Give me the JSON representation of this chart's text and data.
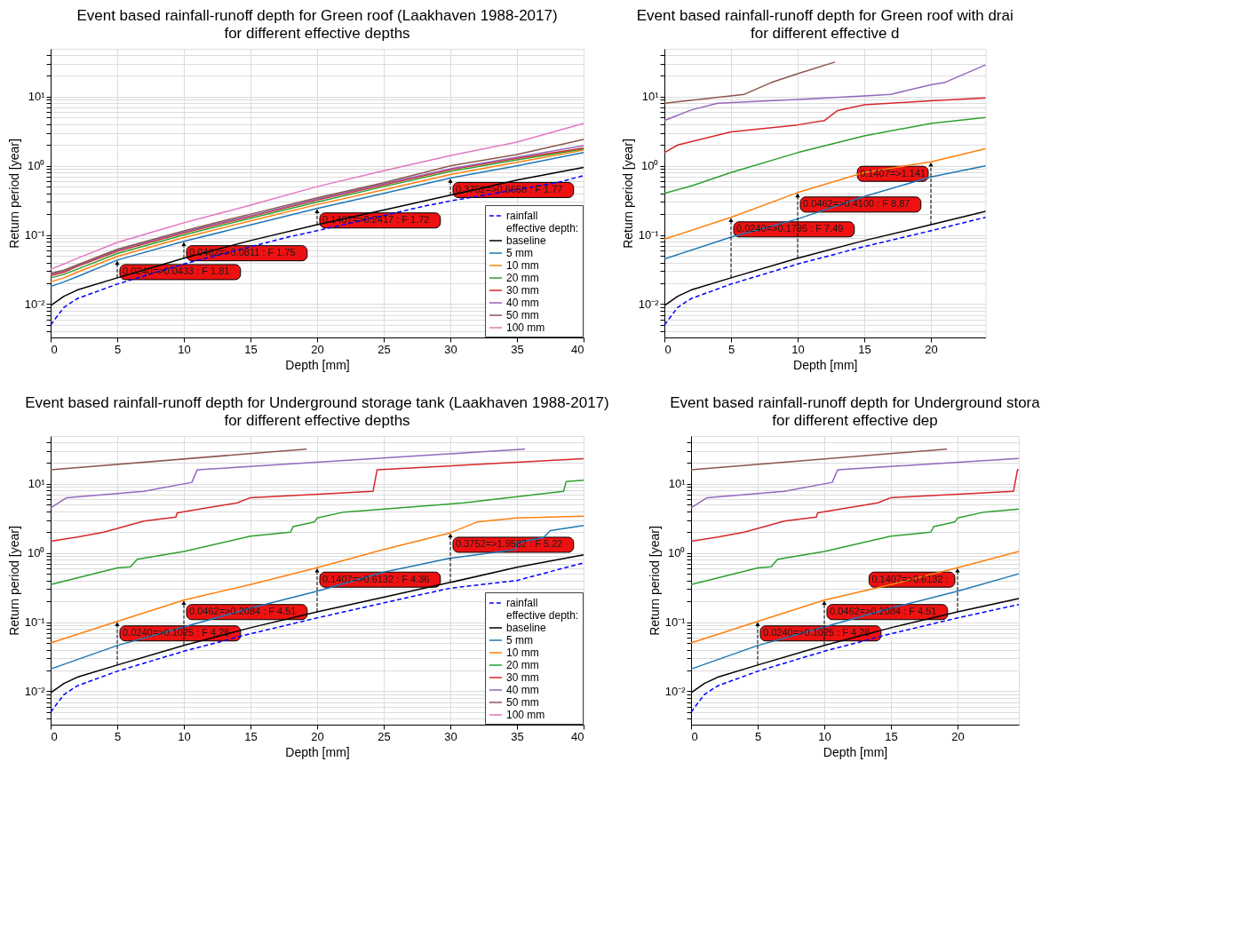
{
  "chart_data": [
    {
      "type": "line",
      "title": "Event based rainfall-runoff depth for Green roof (Laakhaven 1988-2017)",
      "subtitle": "for different effective depths",
      "xlabel": "Depth [mm]",
      "ylabel": "Return period [year]",
      "xlim": [
        0,
        40
      ],
      "xticks": [
        0,
        5,
        10,
        15,
        20,
        25,
        30,
        35,
        40
      ],
      "ylim": [
        0.0033,
        49
      ],
      "log": "y",
      "grid": true,
      "legend": "bottom right",
      "legend_title": "effective depth:",
      "yticks": [
        {
          "value": 0.004,
          "label": null
        },
        {
          "value": 0.005,
          "label": null
        },
        {
          "value": 0.006,
          "label": null
        },
        {
          "value": 0.007,
          "label": null
        },
        {
          "value": 0.008,
          "label": null
        },
        {
          "value": 0.009,
          "label": null
        },
        {
          "value": 0.01,
          "label": "10⁻²"
        },
        {
          "value": 0.02,
          "label": null
        },
        {
          "value": 0.03,
          "label": null
        },
        {
          "value": 0.04,
          "label": null
        },
        {
          "value": 0.05,
          "label": null
        },
        {
          "value": 0.06,
          "label": null
        },
        {
          "value": 0.07,
          "label": null
        },
        {
          "value": 0.08,
          "label": null
        },
        {
          "value": 0.09,
          "label": null
        },
        {
          "value": 0.1,
          "label": "10⁻¹"
        },
        {
          "value": 0.2,
          "label": null
        },
        {
          "value": 0.3,
          "label": null
        },
        {
          "value": 0.4,
          "label": null
        },
        {
          "value": 0.5,
          "label": null
        },
        {
          "value": 0.6,
          "label": null
        },
        {
          "value": 0.7,
          "label": null
        },
        {
          "value": 0.8,
          "label": null
        },
        {
          "value": 0.9,
          "label": null
        },
        {
          "value": 1,
          "label": "10⁰"
        },
        {
          "value": 2,
          "label": null
        },
        {
          "value": 3,
          "label": null
        },
        {
          "value": 4,
          "label": null
        },
        {
          "value": 5,
          "label": null
        },
        {
          "value": 6,
          "label": null
        },
        {
          "value": 7,
          "label": null
        },
        {
          "value": 8,
          "label": null
        },
        {
          "value": 9,
          "label": null
        },
        {
          "value": 10,
          "label": "10¹"
        },
        {
          "value": 20,
          "label": null
        },
        {
          "value": 30,
          "label": null
        },
        {
          "value": 40,
          "label": null
        }
      ],
      "series": [
        {
          "name": "rainfall",
          "color": "#0000ff",
          "line_style": "dashed",
          "x": [
            0,
            1,
            2,
            5,
            10,
            18,
            20,
            28,
            30,
            38,
            40
          ],
          "values": [
            0.005,
            0.009,
            0.012,
            0.0195,
            0.038,
            0.095,
            0.115,
            0.26,
            0.31,
            0.57,
            0.72
          ]
        },
        {
          "name": "baseline",
          "color": "#000000",
          "x": [
            0,
            1,
            2,
            5,
            10,
            15,
            20,
            25,
            30,
            35,
            40
          ],
          "values": [
            0.0095,
            0.013,
            0.016,
            0.024,
            0.0462,
            0.083,
            0.1407,
            0.23,
            0.3752,
            0.62,
            0.95
          ]
        },
        {
          "name": "5 mm",
          "color": "#1f77b4",
          "x": [
            0,
            1,
            2,
            5,
            10,
            15,
            20,
            25,
            30,
            35,
            40
          ],
          "values": [
            0.018,
            0.021,
            0.025,
            0.0433,
            0.0811,
            0.14,
            0.2417,
            0.4,
            0.6656,
            1.0,
            1.55
          ]
        },
        {
          "name": "10 mm",
          "color": "#ff7f0e",
          "x": [
            0,
            1,
            2,
            5,
            10,
            15,
            20,
            25,
            30,
            35,
            40
          ],
          "values": [
            0.021,
            0.024,
            0.029,
            0.049,
            0.092,
            0.16,
            0.275,
            0.45,
            0.75,
            1.12,
            1.68
          ]
        },
        {
          "name": "20 mm",
          "color": "#2ca02c",
          "x": [
            0,
            1,
            2,
            5,
            10,
            15,
            20,
            25,
            30,
            35,
            40
          ],
          "values": [
            0.024,
            0.027,
            0.032,
            0.054,
            0.1,
            0.175,
            0.3,
            0.5,
            0.83,
            1.22,
            1.75
          ]
        },
        {
          "name": "30 mm",
          "color": "#d62728",
          "x": [
            0,
            1,
            2,
            5,
            10,
            15,
            20,
            25,
            30,
            35,
            40
          ],
          "values": [
            0.026,
            0.029,
            0.035,
            0.058,
            0.107,
            0.185,
            0.32,
            0.53,
            0.88,
            1.28,
            1.8
          ]
        },
        {
          "name": "40 mm",
          "color": "#9467bd",
          "x": [
            0,
            1,
            2,
            5,
            10,
            15,
            20,
            25,
            30,
            35,
            40
          ],
          "values": [
            0.027,
            0.03,
            0.036,
            0.06,
            0.111,
            0.19,
            0.33,
            0.55,
            0.91,
            1.33,
            1.95
          ]
        },
        {
          "name": "50 mm",
          "color": "#8c564b",
          "x": [
            0,
            1,
            2,
            5,
            10,
            15,
            20,
            25,
            30,
            35,
            40
          ],
          "values": [
            0.028,
            0.031,
            0.037,
            0.062,
            0.115,
            0.2,
            0.345,
            0.57,
            1.0,
            1.45,
            2.4
          ]
        },
        {
          "name": "100 mm",
          "color": "#e377c2",
          "x": [
            0,
            1,
            2,
            5,
            10,
            15,
            20,
            25,
            30,
            35,
            40
          ],
          "values": [
            0.032,
            0.038,
            0.046,
            0.078,
            0.15,
            0.27,
            0.5,
            0.85,
            1.4,
            2.2,
            4.1
          ]
        }
      ],
      "annotations": [
        {
          "text": "0.0240=>0.0433 : F 1.81",
          "x": 5,
          "y": 0.0433
        },
        {
          "text": "0.0462=>0.0811 : F 1.75",
          "x": 10,
          "y": 0.0811
        },
        {
          "text": "0.1407=>0.2417 : F 1.72",
          "x": 20,
          "y": 0.2417
        },
        {
          "text": "0.3752=>0.6656 : F 1.77",
          "x": 30,
          "y": 0.6656
        }
      ]
    },
    {
      "type": "line",
      "title": "Event based rainfall-runoff depth for Green roof with drai",
      "subtitle": "for different effective d",
      "xlabel": "Depth [mm]",
      "ylabel": "Return period [year]",
      "xlim": [
        0,
        24.1
      ],
      "xticks": [
        0,
        5,
        10,
        15,
        20
      ],
      "ylim": [
        0.0033,
        49
      ],
      "log": "y",
      "grid": true,
      "yticks": [
        {
          "value": 0.004,
          "label": null
        },
        {
          "value": 0.005,
          "label": null
        },
        {
          "value": 0.006,
          "label": null
        },
        {
          "value": 0.007,
          "label": null
        },
        {
          "value": 0.008,
          "label": null
        },
        {
          "value": 0.009,
          "label": null
        },
        {
          "value": 0.01,
          "label": "10⁻²"
        },
        {
          "value": 0.02,
          "label": null
        },
        {
          "value": 0.03,
          "label": null
        },
        {
          "value": 0.04,
          "label": null
        },
        {
          "value": 0.05,
          "label": null
        },
        {
          "value": 0.06,
          "label": null
        },
        {
          "value": 0.07,
          "label": null
        },
        {
          "value": 0.08,
          "label": null
        },
        {
          "value": 0.09,
          "label": null
        },
        {
          "value": 0.1,
          "label": "10⁻¹"
        },
        {
          "value": 0.2,
          "label": null
        },
        {
          "value": 0.3,
          "label": null
        },
        {
          "value": 0.4,
          "label": null
        },
        {
          "value": 0.5,
          "label": null
        },
        {
          "value": 0.6,
          "label": null
        },
        {
          "value": 0.7,
          "label": null
        },
        {
          "value": 0.8,
          "label": null
        },
        {
          "value": 0.9,
          "label": null
        },
        {
          "value": 1,
          "label": "10⁰"
        },
        {
          "value": 2,
          "label": null
        },
        {
          "value": 3,
          "label": null
        },
        {
          "value": 4,
          "label": null
        },
        {
          "value": 5,
          "label": null
        },
        {
          "value": 6,
          "label": null
        },
        {
          "value": 7,
          "label": null
        },
        {
          "value": 8,
          "label": null
        },
        {
          "value": 9,
          "label": null
        },
        {
          "value": 10,
          "label": "10¹"
        },
        {
          "value": 20,
          "label": null
        },
        {
          "value": 30,
          "label": null
        },
        {
          "value": 40,
          "label": null
        }
      ],
      "series": [
        {
          "color": "#0000ff",
          "line_style": "dashed",
          "x": [
            0,
            1,
            2,
            5,
            10,
            15,
            20,
            24.1
          ],
          "values": [
            0.005,
            0.009,
            0.012,
            0.0195,
            0.038,
            0.068,
            0.115,
            0.18
          ]
        },
        {
          "color": "#000000",
          "x": [
            0,
            1,
            2,
            5,
            10,
            15,
            20,
            24.1
          ],
          "values": [
            0.0095,
            0.013,
            0.016,
            0.024,
            0.0462,
            0.083,
            0.1407,
            0.22
          ]
        },
        {
          "color": "#1f77b4",
          "x": [
            0,
            5,
            10,
            15,
            20,
            24.1
          ],
          "values": [
            0.045,
            0.093,
            0.17,
            0.36,
            0.69,
            1.0
          ]
        },
        {
          "color": "#ff7f0e",
          "x": [
            0,
            5,
            10,
            15,
            20,
            24.1
          ],
          "values": [
            0.087,
            0.1795,
            0.41,
            0.8,
            1.141,
            1.76
          ]
        },
        {
          "color": "#2ca02c",
          "x": [
            0,
            2,
            5,
            10,
            15,
            20,
            24.1
          ],
          "values": [
            0.4,
            0.51,
            0.8,
            1.55,
            2.7,
            4.1,
            5.0
          ]
        },
        {
          "color": "#d62728",
          "x": [
            0,
            1,
            5,
            10,
            12,
            13,
            15,
            20,
            24.1
          ],
          "values": [
            1.55,
            2.0,
            3.1,
            3.9,
            4.5,
            6.3,
            7.6,
            8.7,
            9.6
          ]
        },
        {
          "color": "#9467bd",
          "x": [
            0,
            2,
            4,
            10,
            15,
            17,
            20,
            21,
            24.1
          ],
          "values": [
            4.5,
            6.4,
            8.0,
            9.1,
            10.2,
            10.8,
            14.8,
            15.9,
            28.7
          ]
        },
        {
          "color": "#8c564b",
          "x": [
            0,
            6,
            8,
            10,
            12.8
          ],
          "values": [
            8.0,
            10.8,
            15.9,
            21.4,
            31.6
          ]
        }
      ],
      "annotations": [
        {
          "text": "0.0240=>0.1795 : F 7.49",
          "x": 5,
          "y": 0.1795
        },
        {
          "text": "0.0462=>0.4100 : F 8,87",
          "x": 10,
          "y": 0.41
        },
        {
          "text": "0.1407=>1.141",
          "x": 20,
          "y": 1.141
        }
      ]
    },
    {
      "type": "line",
      "title": "Event based rainfall-runoff depth for  Underground storage tank (Laakhaven 1988-2017)",
      "subtitle": "for different effective depths",
      "xlabel": "Depth [mm]",
      "ylabel": "Return period [year]",
      "xlim": [
        0,
        40
      ],
      "xticks": [
        0,
        5,
        10,
        15,
        20,
        25,
        30,
        35,
        40
      ],
      "ylim": [
        0.0033,
        49
      ],
      "log": "y",
      "grid": true,
      "legend": "bottom right",
      "legend_title": "effective depth:",
      "yticks": [
        {
          "value": 0.004,
          "label": null
        },
        {
          "value": 0.005,
          "label": null
        },
        {
          "value": 0.006,
          "label": null
        },
        {
          "value": 0.007,
          "label": null
        },
        {
          "value": 0.008,
          "label": null
        },
        {
          "value": 0.009,
          "label": null
        },
        {
          "value": 0.01,
          "label": "10⁻²"
        },
        {
          "value": 0.02,
          "label": null
        },
        {
          "value": 0.03,
          "label": null
        },
        {
          "value": 0.04,
          "label": null
        },
        {
          "value": 0.05,
          "label": null
        },
        {
          "value": 0.06,
          "label": null
        },
        {
          "value": 0.07,
          "label": null
        },
        {
          "value": 0.08,
          "label": null
        },
        {
          "value": 0.09,
          "label": null
        },
        {
          "value": 0.1,
          "label": "10⁻¹"
        },
        {
          "value": 0.2,
          "label": null
        },
        {
          "value": 0.3,
          "label": null
        },
        {
          "value": 0.4,
          "label": null
        },
        {
          "value": 0.5,
          "label": null
        },
        {
          "value": 0.6,
          "label": null
        },
        {
          "value": 0.7,
          "label": null
        },
        {
          "value": 0.8,
          "label": null
        },
        {
          "value": 0.9,
          "label": null
        },
        {
          "value": 1,
          "label": "10⁰"
        },
        {
          "value": 2,
          "label": null
        },
        {
          "value": 3,
          "label": null
        },
        {
          "value": 4,
          "label": null
        },
        {
          "value": 5,
          "label": null
        },
        {
          "value": 6,
          "label": null
        },
        {
          "value": 7,
          "label": null
        },
        {
          "value": 8,
          "label": null
        },
        {
          "value": 9,
          "label": null
        },
        {
          "value": 10,
          "label": "10¹"
        },
        {
          "value": 20,
          "label": null
        },
        {
          "value": 30,
          "label": null
        },
        {
          "value": 40,
          "label": null
        }
      ],
      "series": [
        {
          "name": "rainfall",
          "color": "#0000ff",
          "line_style": "dashed",
          "x": [
            0,
            1,
            2,
            5,
            10,
            15,
            20,
            25,
            30,
            35,
            40
          ],
          "values": [
            0.005,
            0.009,
            0.012,
            0.0195,
            0.038,
            0.068,
            0.115,
            0.19,
            0.31,
            0.4,
            0.72
          ]
        },
        {
          "name": "baseline",
          "color": "#000000",
          "x": [
            0,
            1,
            2,
            5,
            10,
            15,
            20,
            25,
            30,
            35,
            40
          ],
          "values": [
            0.0095,
            0.013,
            0.016,
            0.024,
            0.0462,
            0.083,
            0.1407,
            0.23,
            0.3752,
            0.62,
            0.94
          ]
        },
        {
          "name": "5 mm",
          "color": "#1f77b4",
          "x": [
            0,
            5,
            10,
            15,
            20,
            25,
            30,
            34.9,
            35,
            37,
            37.5,
            40
          ],
          "values": [
            0.021,
            0.046,
            0.085,
            0.16,
            0.28,
            0.53,
            0.84,
            1.12,
            1.41,
            1.67,
            2.1,
            2.5
          ]
        },
        {
          "name": "10 mm",
          "color": "#ff7f0e",
          "x": [
            0,
            5,
            10,
            15,
            20,
            25,
            30,
            32,
            35,
            40
          ],
          "values": [
            0.05,
            0.1025,
            0.2084,
            0.35,
            0.6132,
            1.12,
            1.9582,
            2.8,
            3.2,
            3.4
          ]
        },
        {
          "name": "20 mm",
          "color": "#2ca02c",
          "x": [
            0,
            5,
            6,
            6.5,
            10,
            15,
            18,
            18.2,
            19.8,
            20,
            22,
            31,
            38.5,
            38.7,
            40
          ],
          "values": [
            0.35,
            0.61,
            0.63,
            0.81,
            1.05,
            1.75,
            2.0,
            2.4,
            2.8,
            3.2,
            3.9,
            5.3,
            7.8,
            10.8,
            11.3
          ]
        },
        {
          "name": "30 mm",
          "color": "#d62728",
          "x": [
            0,
            2,
            4,
            7,
            9.4,
            9.5,
            14,
            15,
            24.2,
            24.5,
            40
          ],
          "values": [
            1.48,
            1.7,
            2.0,
            2.9,
            3.3,
            3.8,
            5.3,
            6.3,
            7.8,
            15.9,
            23
          ]
        },
        {
          "name": "40 mm",
          "color": "#9467bd",
          "x": [
            0,
            1.2,
            7,
            10.6,
            11,
            35.6
          ],
          "values": [
            4.5,
            6.3,
            7.8,
            10.5,
            15.9,
            31.8
          ]
        },
        {
          "name": "50 mm",
          "color": "#8c564b",
          "x": [
            0,
            19.2
          ],
          "values": [
            15.9,
            31.8
          ]
        },
        {
          "name": "100 mm",
          "color": "#e377c2"
        }
      ],
      "annotations": [
        {
          "text": "0.0240=>0.1025 : F 4.28",
          "x": 5,
          "y": 0.1025
        },
        {
          "text": "0.0462=>0.2084 : F 4.51",
          "x": 10,
          "y": 0.2084
        },
        {
          "text": "0.1407=>0.6132 : F 4.36",
          "x": 20,
          "y": 0.6132
        },
        {
          "text": "0.3752=>1.9582 : F 5.22",
          "x": 30,
          "y": 1.9582
        }
      ]
    },
    {
      "type": "line",
      "title": "Event based rainfall-runoff depth for  Underground stora",
      "subtitle": "for different effective dep",
      "xlabel": "Depth [mm]",
      "ylabel": "Return period [year]",
      "xlim": [
        0,
        24.6
      ],
      "xticks": [
        0,
        5,
        10,
        15,
        20
      ],
      "ylim": [
        0.0033,
        49
      ],
      "log": "y",
      "grid": true,
      "yticks": [
        {
          "value": 0.004,
          "label": null
        },
        {
          "value": 0.005,
          "label": null
        },
        {
          "value": 0.006,
          "label": null
        },
        {
          "value": 0.007,
          "label": null
        },
        {
          "value": 0.008,
          "label": null
        },
        {
          "value": 0.009,
          "label": null
        },
        {
          "value": 0.01,
          "label": "10⁻²"
        },
        {
          "value": 0.02,
          "label": null
        },
        {
          "value": 0.03,
          "label": null
        },
        {
          "value": 0.04,
          "label": null
        },
        {
          "value": 0.05,
          "label": null
        },
        {
          "value": 0.06,
          "label": null
        },
        {
          "value": 0.07,
          "label": null
        },
        {
          "value": 0.08,
          "label": null
        },
        {
          "value": 0.09,
          "label": null
        },
        {
          "value": 0.1,
          "label": "10⁻¹"
        },
        {
          "value": 0.2,
          "label": null
        },
        {
          "value": 0.3,
          "label": null
        },
        {
          "value": 0.4,
          "label": null
        },
        {
          "value": 0.5,
          "label": null
        },
        {
          "value": 0.6,
          "label": null
        },
        {
          "value": 0.7,
          "label": null
        },
        {
          "value": 0.8,
          "label": null
        },
        {
          "value": 0.9,
          "label": null
        },
        {
          "value": 1,
          "label": "10⁰"
        },
        {
          "value": 2,
          "label": null
        },
        {
          "value": 3,
          "label": null
        },
        {
          "value": 4,
          "label": null
        },
        {
          "value": 5,
          "label": null
        },
        {
          "value": 6,
          "label": null
        },
        {
          "value": 7,
          "label": null
        },
        {
          "value": 8,
          "label": null
        },
        {
          "value": 9,
          "label": null
        },
        {
          "value": 10,
          "label": "10¹"
        },
        {
          "value": 20,
          "label": null
        },
        {
          "value": 30,
          "label": null
        },
        {
          "value": 40,
          "label": null
        }
      ],
      "series": [
        {
          "color": "#0000ff",
          "line_style": "dashed",
          "x": [
            0,
            1,
            2,
            5,
            10,
            15,
            20,
            24.6
          ],
          "values": [
            0.005,
            0.009,
            0.012,
            0.0195,
            0.038,
            0.068,
            0.115,
            0.18
          ]
        },
        {
          "color": "#000000",
          "x": [
            0,
            1,
            2,
            5,
            10,
            15,
            20,
            24.6
          ],
          "values": [
            0.0095,
            0.013,
            0.016,
            0.024,
            0.0462,
            0.083,
            0.1407,
            0.22
          ]
        },
        {
          "color": "#1f77b4",
          "x": [
            0,
            5,
            10,
            15,
            20,
            24.6
          ],
          "values": [
            0.021,
            0.046,
            0.085,
            0.16,
            0.28,
            0.5
          ]
        },
        {
          "color": "#ff7f0e",
          "x": [
            0,
            5,
            10,
            15,
            20,
            24.6
          ],
          "values": [
            0.05,
            0.1025,
            0.2084,
            0.35,
            0.6132,
            1.05
          ]
        },
        {
          "color": "#2ca02c",
          "x": [
            0,
            5,
            6,
            6.5,
            10,
            15,
            18,
            18.2,
            19.8,
            20,
            22,
            24.6
          ],
          "values": [
            0.35,
            0.61,
            0.63,
            0.81,
            1.05,
            1.75,
            2.0,
            2.4,
            2.8,
            3.2,
            3.9,
            4.3
          ]
        },
        {
          "color": "#d62728",
          "x": [
            0,
            2,
            4,
            7,
            9.4,
            9.5,
            14,
            15,
            24.2,
            24.5,
            24.6
          ],
          "values": [
            1.48,
            1.7,
            2.0,
            2.9,
            3.3,
            3.8,
            5.3,
            6.3,
            7.8,
            15.9,
            16.0
          ]
        },
        {
          "color": "#9467bd",
          "x": [
            0,
            1.2,
            7,
            10.6,
            11,
            24.6
          ],
          "values": [
            4.5,
            6.3,
            7.8,
            10.5,
            15.9,
            23.3
          ]
        },
        {
          "color": "#8c564b",
          "x": [
            0,
            19.2
          ],
          "values": [
            15.9,
            31.8
          ]
        }
      ],
      "annotations": [
        {
          "text": "0.0240=>0.1025 : F 4.28",
          "x": 5,
          "y": 0.1025
        },
        {
          "text": "0.0462=>0.2084 : F 4.51",
          "x": 10,
          "y": 0.2084
        },
        {
          "text": "0.1407=>0.6132 :",
          "x": 20,
          "y": 0.6132
        }
      ]
    }
  ]
}
